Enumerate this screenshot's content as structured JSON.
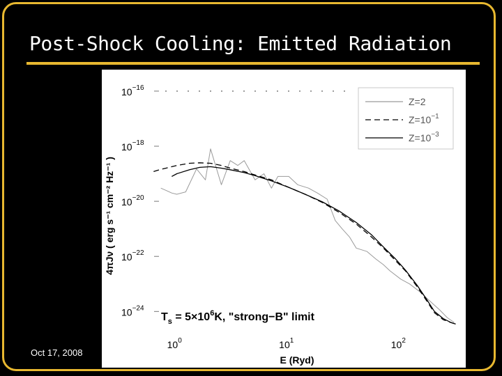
{
  "slide": {
    "title": "Post-Shock Cooling: Emitted Radiation",
    "footer": "Oct 17, 2008",
    "accent_color": "#e8b830"
  },
  "chart_data": {
    "type": "line",
    "title": "",
    "xlabel": "E (Ryd)",
    "ylabel": "4πJν ( erg s⁻¹ cm⁻² Hz⁻¹ )",
    "x_scale": "log",
    "y_scale": "log",
    "xlim": [
      0.6,
      330
    ],
    "ylim": [
      3e-25,
      3e-16
    ],
    "x_ticks": [
      {
        "value": 1,
        "base": "10",
        "exp": "0"
      },
      {
        "value": 10,
        "base": "10",
        "exp": "1"
      },
      {
        "value": 100,
        "base": "10",
        "exp": "2"
      }
    ],
    "y_ticks": [
      {
        "value": 1e-16,
        "base": "10",
        "exp": "−16"
      },
      {
        "value": 1e-18,
        "base": "10",
        "exp": "−18"
      },
      {
        "value": 1e-20,
        "base": "10",
        "exp": "−20"
      },
      {
        "value": 1e-22,
        "base": "10",
        "exp": "−22"
      },
      {
        "value": 1e-24,
        "base": "10",
        "exp": "−24"
      }
    ],
    "annotation": {
      "text": "T",
      "sub": "s",
      "mid": " = 5×10",
      "sup": "6",
      "tail": "K,  \"strong−B\" limit"
    },
    "legend_position": "top-right",
    "series": [
      {
        "name": "Z=2",
        "name_base": "Z=2",
        "name_exp": "",
        "color": "#9a9a9a",
        "dash": "",
        "x": [
          0.72,
          0.8,
          0.9,
          1.0,
          1.2,
          1.5,
          1.8,
          2.0,
          2.5,
          3.0,
          3.5,
          4.0,
          5.0,
          6.0,
          7.0,
          8.0,
          10,
          12,
          15,
          18,
          22,
          26,
          30,
          35,
          40,
          50,
          60,
          70,
          80,
          100,
          120,
          150,
          180,
          220,
          260,
          300
        ],
        "y": [
          3e-20,
          2.5e-20,
          2e-20,
          1.8e-20,
          2.2e-20,
          1.5e-19,
          6e-20,
          8e-19,
          4e-20,
          3e-19,
          2e-19,
          3e-19,
          6e-20,
          1e-19,
          3e-20,
          8e-20,
          8e-20,
          4e-20,
          3e-20,
          2e-20,
          1.2e-20,
          2e-21,
          1e-21,
          5e-22,
          2e-22,
          1.5e-22,
          8e-23,
          5e-23,
          3e-23,
          1.5e-23,
          1e-23,
          5e-24,
          2.5e-24,
          1.2e-24,
          6e-25,
          4e-25
        ]
      },
      {
        "name": "Z=10^-1",
        "name_base": "Z=10",
        "name_exp": "−1",
        "color": "#000000",
        "dash": "8 5",
        "x": [
          0.62,
          0.7,
          0.8,
          1.0,
          1.3,
          1.6,
          2.0,
          2.5,
          3.0,
          4.0,
          5.0,
          7.0,
          10,
          14,
          20,
          28,
          40,
          55,
          70,
          90,
          110,
          140,
          170,
          200,
          240,
          280,
          310
        ],
        "y": [
          1.2e-19,
          1.4e-19,
          1.6e-19,
          2e-19,
          2.4e-19,
          2.5e-19,
          2.4e-19,
          2e-19,
          1.6e-19,
          1.2e-19,
          9e-20,
          6e-20,
          3.2e-20,
          1.8e-20,
          9e-21,
          4e-21,
          1.5e-21,
          5e-22,
          2e-22,
          7e-23,
          3e-23,
          8e-24,
          2.5e-24,
          9e-25,
          5e-25,
          4e-25,
          3.5e-25
        ]
      },
      {
        "name": "Z=10^-3",
        "name_base": "Z=10",
        "name_exp": "−3",
        "color": "#000000",
        "dash": "",
        "x": [
          0.9,
          1.0,
          1.3,
          1.6,
          2.0,
          2.5,
          3.0,
          4.0,
          5.0,
          7.0,
          10,
          14,
          20,
          28,
          40,
          55,
          70,
          90,
          110,
          140,
          170,
          200,
          240,
          280,
          310
        ],
        "y": [
          8e-20,
          1e-19,
          1.4e-19,
          1.7e-19,
          1.8e-19,
          1.6e-19,
          1.4e-19,
          1.1e-19,
          8.5e-20,
          5.5e-20,
          3.2e-20,
          1.8e-20,
          9.5e-21,
          4.5e-21,
          1.7e-21,
          6e-22,
          2.2e-22,
          8e-23,
          3.2e-23,
          9e-24,
          2.8e-24,
          1e-24,
          5.5e-25,
          4e-25,
          3.5e-25
        ]
      }
    ]
  }
}
